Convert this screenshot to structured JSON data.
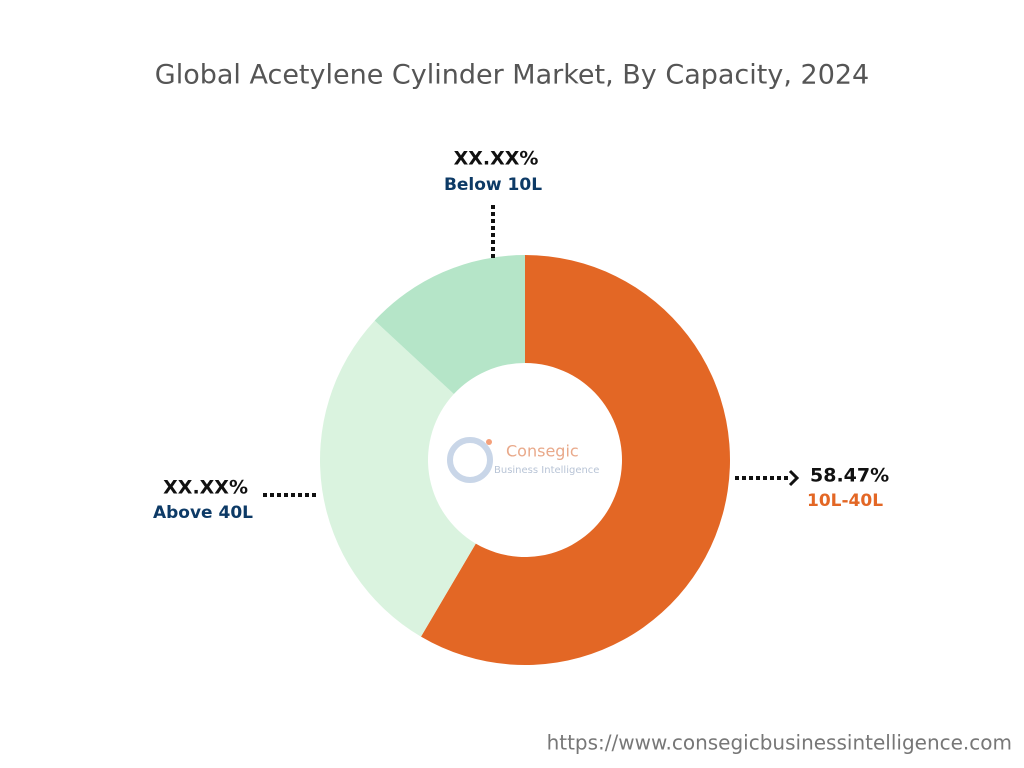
{
  "chart_data": {
    "type": "donut",
    "title": "Global Acetylene Cylinder Market, By Capacity, 2024",
    "categories": [
      "10L-40L",
      "Above 40L",
      "Below 10L"
    ],
    "values": [
      58.47,
      28.43,
      13.1
    ],
    "value_labels": [
      "58.47%",
      "XX.XX%",
      "XX.XX%"
    ],
    "colors": [
      "#e36725",
      "#daf3df",
      "#b5e5c8"
    ],
    "label_colors": [
      "#e36725",
      "#0d3a66",
      "#0d3a66"
    ],
    "watermark": [
      "Consegic",
      "Business Intelligence"
    ],
    "source": "https://www.consegicbusinessintelligence.com"
  }
}
